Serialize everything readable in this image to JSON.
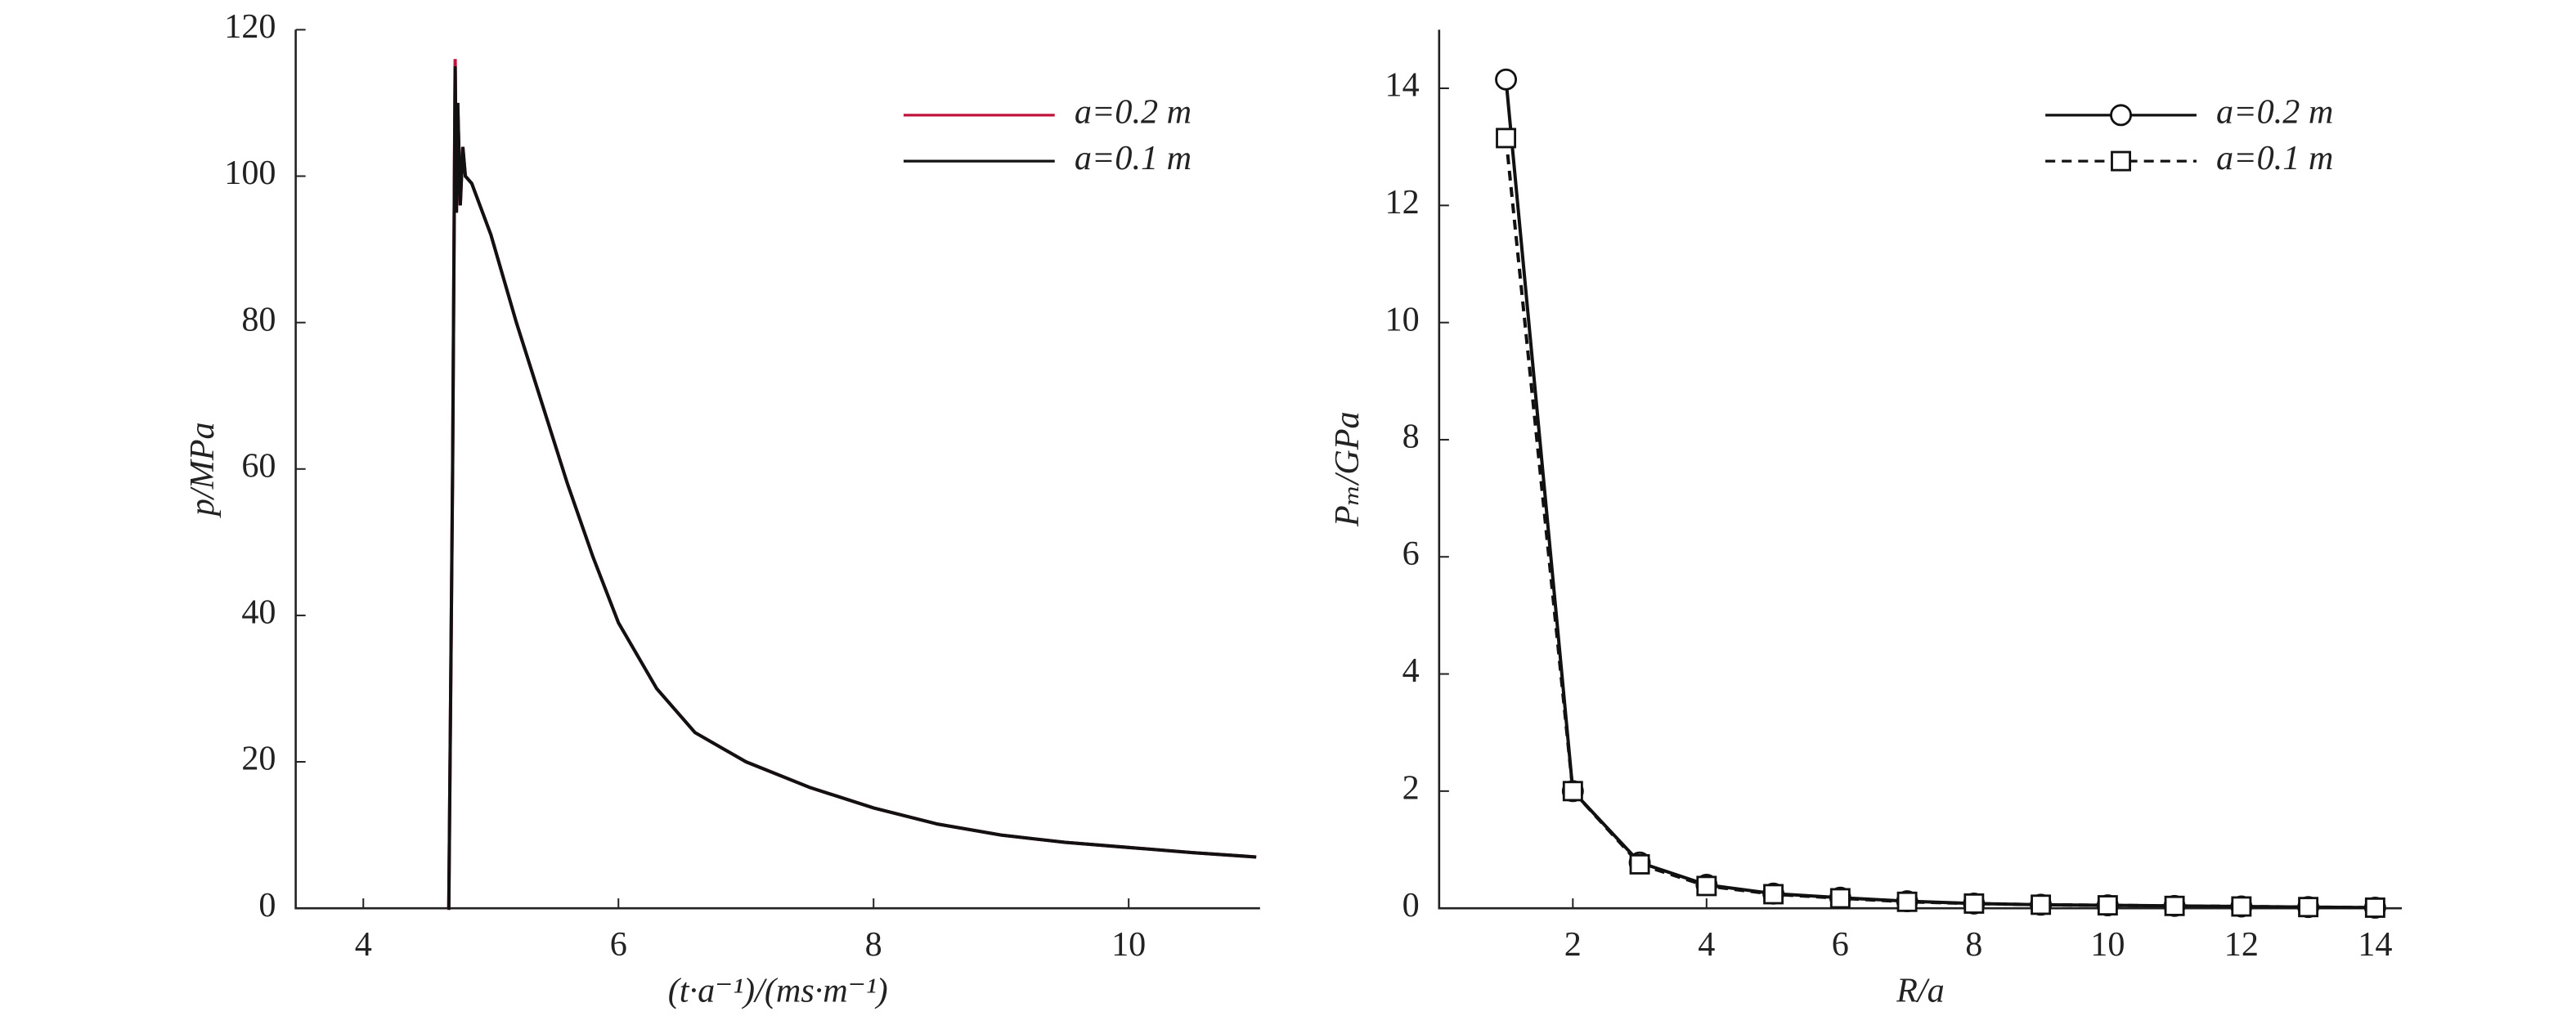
{
  "chart_data": [
    {
      "type": "line",
      "xlabel": "(t·a⁻¹)/(ms·m⁻¹)",
      "ylabel": "p/MPa",
      "xlim": [
        3.47,
        11.03
      ],
      "ylim": [
        0,
        120
      ],
      "xticks": [
        4,
        6,
        8,
        10
      ],
      "yticks": [
        0,
        20,
        40,
        60,
        80,
        100,
        120
      ],
      "legend": "upper right",
      "x": [
        4.66,
        4.67,
        4.7,
        4.72,
        4.73,
        4.74,
        4.76,
        4.78,
        4.8,
        4.85,
        5.0,
        5.2,
        5.4,
        5.6,
        5.8,
        6.0,
        6.3,
        6.6,
        7.0,
        7.5,
        8.0,
        8.5,
        9.0,
        9.5,
        10.0,
        10.5,
        11.0
      ],
      "series": [
        {
          "name": "a=0.2 m",
          "color": "#c0143c",
          "dash": false,
          "marker": null,
          "values": [
            0,
            0,
            60,
            116,
            95,
            110,
            96,
            104,
            100,
            99,
            92,
            80,
            69,
            58,
            48,
            39,
            30,
            24,
            20,
            16.5,
            13.7,
            11.5,
            10,
            9,
            8.3,
            7.6,
            7.0
          ]
        },
        {
          "name": "a=0.1 m",
          "color": "#111111",
          "dash": false,
          "marker": null,
          "values": [
            0,
            0,
            60,
            115,
            95,
            110,
            96,
            104,
            100,
            99,
            92,
            80,
            69,
            58,
            48,
            39,
            30,
            24,
            20,
            16.5,
            13.7,
            11.5,
            10,
            9,
            8.3,
            7.6,
            7.0
          ]
        }
      ]
    },
    {
      "type": "line",
      "xlabel": "R/a",
      "ylabel": "Pₘ/GPa",
      "xlim": [
        0,
        14.4
      ],
      "ylim": [
        0,
        15
      ],
      "xticks": [
        2,
        4,
        6,
        8,
        10,
        12,
        14
      ],
      "yticks": [
        0,
        2,
        4,
        6,
        8,
        10,
        12,
        14
      ],
      "legend": "upper right",
      "x": [
        1,
        2,
        3,
        4,
        5,
        6,
        7,
        8,
        9,
        10,
        11,
        12,
        13,
        14
      ],
      "series": [
        {
          "name": "a=0.2 m",
          "color": "#111111",
          "dash": false,
          "marker": "circle",
          "values": [
            14.15,
            2.0,
            0.78,
            0.4,
            0.25,
            0.18,
            0.12,
            0.08,
            0.06,
            0.05,
            0.04,
            0.03,
            0.02,
            0.01
          ]
        },
        {
          "name": "a=0.1 m",
          "color": "#111111",
          "dash": true,
          "marker": "square",
          "values": [
            13.15,
            2.0,
            0.75,
            0.38,
            0.24,
            0.17,
            0.11,
            0.08,
            0.06,
            0.05,
            0.04,
            0.03,
            0.02,
            0.01
          ]
        }
      ]
    }
  ]
}
